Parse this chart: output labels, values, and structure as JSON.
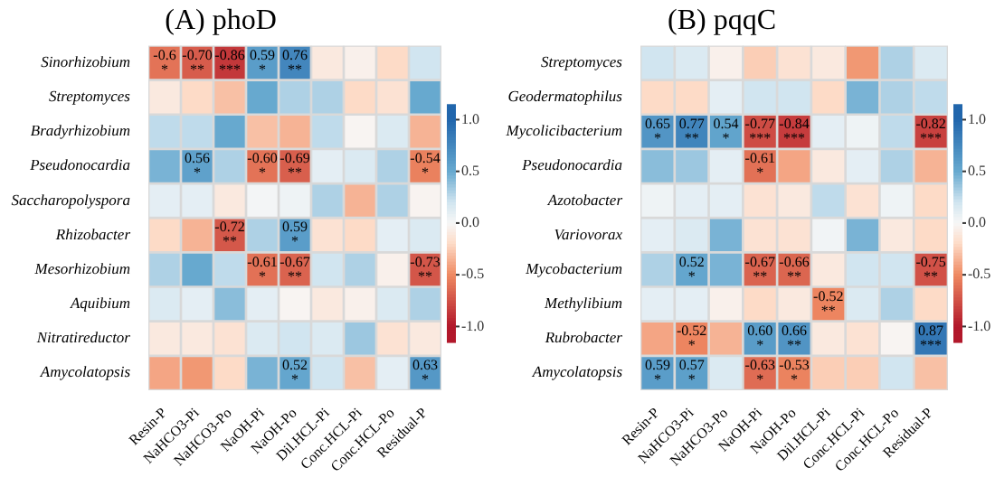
{
  "chart_data": [
    {
      "type": "heatmap",
      "title": "(A) phoD",
      "categories": [
        "Resin-P",
        "NaHCO3-Pi",
        "NaHCO3-Po",
        "NaOH-Pi",
        "NaOH-Po",
        "Dil.HCL-Pi",
        "Conc.HCL-Pi",
        "Conc.HCL-Po",
        "Residual-P"
      ],
      "y_categories": [
        "Sinorhizobium",
        "Streptomyces",
        "Bradyrhizobium",
        "Pseudonocardia",
        "Saccharopolyspora",
        "Rhizobacter",
        "Mesorhizobium",
        "Aquibium",
        "Nitratireductor",
        "Amycolatopsis"
      ],
      "cells": [
        [
          -0.6,
          -0.7,
          -0.86,
          0.59,
          0.76,
          -0.1,
          -0.05,
          -0.2,
          0.2
        ],
        [
          -0.1,
          -0.2,
          -0.3,
          0.5,
          0.3,
          0.3,
          -0.2,
          -0.15,
          0.5
        ],
        [
          0.25,
          0.25,
          0.5,
          -0.3,
          -0.35,
          0.25,
          -0.02,
          0.15,
          -0.35
        ],
        [
          0.45,
          0.56,
          0.3,
          -0.6,
          -0.69,
          0.1,
          0.15,
          0.3,
          -0.54
        ],
        [
          0.1,
          0.1,
          -0.1,
          0.02,
          0.05,
          0.3,
          -0.35,
          0.3,
          -0.03
        ],
        [
          -0.2,
          -0.35,
          -0.72,
          0.3,
          0.59,
          -0.15,
          -0.2,
          0.1,
          0.15
        ],
        [
          0.3,
          0.5,
          0.25,
          -0.61,
          -0.67,
          0.2,
          0.3,
          -0.05,
          -0.73
        ],
        [
          0.15,
          0.1,
          0.4,
          0.1,
          -0.02,
          -0.1,
          -0.05,
          0.15,
          0.3
        ],
        [
          -0.1,
          -0.1,
          -0.15,
          0.15,
          0.2,
          0.15,
          0.35,
          -0.15,
          -0.1
        ],
        [
          -0.4,
          -0.45,
          -0.2,
          0.45,
          0.52,
          0.2,
          -0.3,
          0.1,
          0.63
        ]
      ],
      "cell_labels": [
        [
          "-0.6\n*",
          "-0.70\n**",
          "-0.86\n***",
          "0.59\n*",
          "0.76\n**",
          null,
          null,
          null,
          null
        ],
        [
          null,
          null,
          null,
          null,
          null,
          null,
          null,
          null,
          null
        ],
        [
          null,
          null,
          null,
          null,
          null,
          null,
          null,
          null,
          null
        ],
        [
          null,
          "0.56\n*",
          null,
          "-0.60\n*",
          "-0.69\n**",
          null,
          null,
          null,
          "-0.54\n*"
        ],
        [
          null,
          null,
          null,
          null,
          null,
          null,
          null,
          null,
          null
        ],
        [
          null,
          null,
          "-0.72\n**",
          null,
          "0.59\n*",
          null,
          null,
          null,
          null
        ],
        [
          null,
          null,
          null,
          "-0.61\n*",
          "-0.67\n**",
          null,
          null,
          null,
          "-0.73\n**"
        ],
        [
          null,
          null,
          null,
          null,
          null,
          null,
          null,
          null,
          null
        ],
        [
          null,
          null,
          null,
          null,
          null,
          null,
          null,
          null,
          null
        ],
        [
          null,
          null,
          null,
          null,
          "0.52\n*",
          null,
          null,
          null,
          "0.63\n*"
        ]
      ],
      "clim": [
        -1.15,
        1.15
      ],
      "cticks": [
        {
          "value": 1,
          "label": "1.0"
        },
        {
          "value": 0.5,
          "label": "0.5"
        },
        {
          "value": 0,
          "label": "0.0"
        },
        {
          "value": -0.5,
          "label": "-0.5"
        },
        {
          "value": -1,
          "label": "-1.0"
        }
      ]
    },
    {
      "type": "heatmap",
      "title": "(B) pqqC",
      "categories": [
        "Resin-P",
        "NaHCO3-Pi",
        "NaHCO3-Po",
        "NaOH-Pi",
        "NaOH-Po",
        "Dil.HCL-Pi",
        "Conc.HCL-Pi",
        "Conc.HCL-Po",
        "Residual-P"
      ],
      "y_categories": [
        "Streptomyces",
        "Geodermatophilus",
        "Mycolicibacterium",
        "Pseudonocardia",
        "Azotobacter",
        "Variovorax",
        "Mycobacterium",
        "Methylibium",
        "Rubrobacter",
        "Amycolatopsis"
      ],
      "cells": [
        [
          0.2,
          0.15,
          -0.05,
          -0.25,
          -0.15,
          -0.1,
          -0.45,
          0.3,
          0.15
        ],
        [
          -0.2,
          -0.2,
          0.1,
          0.2,
          0.2,
          -0.2,
          0.45,
          0.3,
          0.25
        ],
        [
          0.65,
          0.77,
          0.54,
          -0.77,
          -0.84,
          0.1,
          0.05,
          0.25,
          -0.82
        ],
        [
          0.4,
          0.35,
          0.1,
          -0.61,
          -0.4,
          -0.1,
          0.1,
          0.3,
          -0.35
        ],
        [
          0.05,
          0.1,
          0.1,
          -0.15,
          -0.1,
          0.25,
          -0.15,
          0.05,
          -0.2
        ],
        [
          0.1,
          0.15,
          0.45,
          -0.15,
          -0.15,
          0.03,
          0.45,
          -0.1,
          -0.2
        ],
        [
          0.3,
          0.52,
          0.45,
          -0.67,
          -0.66,
          -0.1,
          0.2,
          0.2,
          -0.75
        ],
        [
          0.1,
          0.1,
          -0.05,
          -0.2,
          -0.1,
          -0.52,
          0.15,
          0.3,
          -0.2
        ],
        [
          -0.4,
          -0.52,
          -0.35,
          0.6,
          0.66,
          -0.1,
          -0.15,
          -0.02,
          0.87
        ],
        [
          0.59,
          0.57,
          0.15,
          -0.63,
          -0.53,
          -0.25,
          -0.25,
          0.2,
          -0.3
        ]
      ],
      "cell_labels": [
        [
          null,
          null,
          null,
          null,
          null,
          null,
          null,
          null,
          null
        ],
        [
          null,
          null,
          null,
          null,
          null,
          null,
          null,
          null,
          null
        ],
        [
          "0.65\n*",
          "0.77\n**",
          "0.54\n*",
          "-0.77\n***",
          "-0.84\n***",
          null,
          null,
          null,
          "-0.82\n***"
        ],
        [
          null,
          null,
          null,
          "-0.61\n*",
          null,
          null,
          null,
          null,
          null
        ],
        [
          null,
          null,
          null,
          null,
          null,
          null,
          null,
          null,
          null
        ],
        [
          null,
          null,
          null,
          null,
          null,
          null,
          null,
          null,
          null
        ],
        [
          null,
          "0.52\n*",
          null,
          "-0.67\n**",
          "-0.66\n**",
          null,
          null,
          null,
          "-0.75\n**"
        ],
        [
          null,
          null,
          null,
          null,
          null,
          "-0.52\n**",
          null,
          null,
          null
        ],
        [
          null,
          "-0.52\n*",
          null,
          "0.60\n*",
          "0.66\n**",
          null,
          null,
          null,
          "0.87\n***"
        ],
        [
          "0.59\n*",
          "0.57\n*",
          null,
          "-0.63\n*",
          "-0.53\n*",
          null,
          null,
          null,
          null
        ]
      ],
      "clim": [
        -1.15,
        1.15
      ],
      "cticks": [
        {
          "value": 1,
          "label": "1.0"
        },
        {
          "value": 0.5,
          "label": "0.5"
        },
        {
          "value": 0,
          "label": "0.0"
        },
        {
          "value": -0.5,
          "label": "-0.5"
        },
        {
          "value": -1,
          "label": "-1.0"
        }
      ]
    }
  ]
}
